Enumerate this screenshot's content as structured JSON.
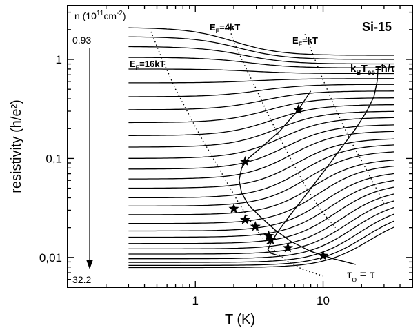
{
  "chart_data": {
    "type": "line",
    "title": "",
    "sample_label": "Si-15",
    "xlabel": "T (K)",
    "ylabel": "resistivity (h/e²)",
    "xscale": "log",
    "yscale": "log",
    "xlim": [
      0.1,
      50
    ],
    "ylim": [
      0.005,
      3.5
    ],
    "x_ticks": [
      {
        "value": 1,
        "label": "1"
      },
      {
        "value": 10,
        "label": "10"
      }
    ],
    "y_ticks": [
      {
        "value": 0.01,
        "label": "0,01"
      },
      {
        "value": 0.1,
        "label": "0,1"
      },
      {
        "value": 1,
        "label": "1"
      }
    ],
    "density_axis": {
      "label_prefix": "n (10",
      "label_exp": "11",
      "label_unit": "cm",
      "label_unit_exp": "-2",
      "label_suffix": ")",
      "top": "0.93",
      "bottom": "32.2"
    },
    "series": [
      {
        "rho_low": 2.1,
        "rho_high": 1.1,
        "T_mid": 2.0
      },
      {
        "rho_low": 1.7,
        "rho_high": 1.0,
        "T_mid": 2.2
      },
      {
        "rho_low": 1.35,
        "rho_high": 0.9,
        "T_mid": 2.4
      },
      {
        "rho_low": 1.05,
        "rho_high": 0.82,
        "T_mid": 2.6
      },
      {
        "rho_low": 0.8,
        "rho_high": 0.72,
        "T_mid": 2.8
      },
      {
        "rho_low": 0.58,
        "rho_high": 0.64,
        "T_mid": 3.0
      },
      {
        "rho_low": 0.42,
        "rho_high": 0.56,
        "T_mid": 3.2
      },
      {
        "rho_low": 0.31,
        "rho_high": 0.48,
        "T_mid": 3.4
      },
      {
        "rho_low": 0.23,
        "rho_high": 0.41,
        "T_mid": 3.7
      },
      {
        "rho_low": 0.17,
        "rho_high": 0.35,
        "T_mid": 4.0
      },
      {
        "rho_low": 0.13,
        "rho_high": 0.3,
        "T_mid": 4.3
      },
      {
        "rho_low": 0.1,
        "rho_high": 0.26,
        "T_mid": 4.7
      },
      {
        "rho_low": 0.078,
        "rho_high": 0.22,
        "T_mid": 5.1
      },
      {
        "rho_low": 0.062,
        "rho_high": 0.19,
        "T_mid": 5.6
      },
      {
        "rho_low": 0.05,
        "rho_high": 0.16,
        "T_mid": 6.2
      },
      {
        "rho_low": 0.04,
        "rho_high": 0.14,
        "T_mid": 6.8
      },
      {
        "rho_low": 0.033,
        "rho_high": 0.12,
        "T_mid": 7.5
      },
      {
        "rho_low": 0.027,
        "rho_high": 0.1,
        "T_mid": 8.3
      },
      {
        "rho_low": 0.022,
        "rho_high": 0.088,
        "T_mid": 9.2
      },
      {
        "rho_low": 0.0185,
        "rho_high": 0.075,
        "T_mid": 10.2
      },
      {
        "rho_low": 0.016,
        "rho_high": 0.065,
        "T_mid": 11.3
      },
      {
        "rho_low": 0.0138,
        "rho_high": 0.057,
        "T_mid": 12.5
      },
      {
        "rho_low": 0.0122,
        "rho_high": 0.05,
        "T_mid": 14.0
      },
      {
        "rho_low": 0.0108,
        "rho_high": 0.044,
        "T_mid": 15.5
      },
      {
        "rho_low": 0.0097,
        "rho_high": 0.039,
        "T_mid": 17.0
      },
      {
        "rho_low": 0.0089,
        "rho_high": 0.035,
        "T_mid": 19.0
      },
      {
        "rho_low": 0.0083,
        "rho_high": 0.031,
        "T_mid": 21.0
      },
      {
        "rho_low": 0.0079,
        "rho_high": 0.028,
        "T_mid": 23.0
      }
    ],
    "dotted_lines": [
      {
        "label": "E_F=16kT",
        "points": [
          [
            0.45,
            1.9
          ],
          [
            0.55,
            1.0
          ],
          [
            0.7,
            0.5
          ],
          [
            0.9,
            0.27
          ],
          [
            1.15,
            0.15
          ],
          [
            1.45,
            0.09
          ],
          [
            1.8,
            0.055
          ],
          [
            2.2,
            0.035
          ],
          [
            2.6,
            0.025
          ],
          [
            3.1,
            0.018
          ],
          [
            3.8,
            0.013
          ],
          [
            5.0,
            0.0095
          ],
          [
            7.0,
            0.0075
          ],
          [
            10.0,
            0.0065
          ]
        ]
      },
      {
        "label": "E_F=4kT",
        "points": [
          [
            1.8,
            2.3
          ],
          [
            2.0,
            1.5
          ],
          [
            2.4,
            0.9
          ],
          [
            3.0,
            0.5
          ],
          [
            3.7,
            0.28
          ],
          [
            4.6,
            0.16
          ],
          [
            5.8,
            0.09
          ],
          [
            7.4,
            0.05
          ],
          [
            9.6,
            0.03
          ],
          [
            12.5,
            0.02
          ]
        ]
      },
      {
        "label": "E_F=kT",
        "points": [
          [
            7.2,
            1.8
          ],
          [
            8.5,
            1.05
          ],
          [
            10.0,
            0.62
          ],
          [
            12.0,
            0.36
          ],
          [
            14.5,
            0.21
          ],
          [
            17.5,
            0.13
          ],
          [
            21.5,
            0.08
          ],
          [
            26.0,
            0.05
          ],
          [
            30.0,
            0.035
          ]
        ]
      }
    ],
    "solid_lines": [
      {
        "label": "k_BT_ee=ħ/τ",
        "points": [
          [
            27,
            0.85
          ],
          [
            26.5,
            0.6
          ],
          [
            25,
            0.42
          ],
          [
            22,
            0.3
          ],
          [
            18,
            0.2
          ],
          [
            14,
            0.13
          ],
          [
            11,
            0.085
          ],
          [
            8.5,
            0.055
          ],
          [
            6.6,
            0.036
          ],
          [
            5.3,
            0.025
          ],
          [
            4.4,
            0.018
          ],
          [
            3.9,
            0.014
          ],
          [
            3.7,
            0.012
          ],
          [
            3.9,
            0.011
          ],
          [
            4.4,
            0.0105
          ]
        ]
      },
      {
        "label": "τ_φ = τ",
        "points": [
          [
            8.0,
            0.48
          ],
          [
            6.4,
            0.31
          ],
          [
            4.6,
            0.19
          ],
          [
            3.3,
            0.13
          ],
          [
            2.6,
            0.1
          ],
          [
            2.3,
            0.08
          ],
          [
            2.2,
            0.06
          ],
          [
            2.3,
            0.045
          ],
          [
            2.6,
            0.034
          ],
          [
            3.2,
            0.026
          ],
          [
            4.2,
            0.019
          ],
          [
            5.6,
            0.0145
          ],
          [
            8.0,
            0.0115
          ],
          [
            12.0,
            0.0097
          ],
          [
            18.0,
            0.0085
          ]
        ]
      }
    ],
    "stars": [
      {
        "T": 6.4,
        "rho": 0.31
      },
      {
        "T": 2.45,
        "rho": 0.093
      },
      {
        "T": 2.0,
        "rho": 0.031
      },
      {
        "T": 2.45,
        "rho": 0.024
      },
      {
        "T": 2.95,
        "rho": 0.0205
      },
      {
        "T": 3.75,
        "rho": 0.0165
      },
      {
        "T": 3.9,
        "rho": 0.015
      },
      {
        "T": 5.3,
        "rho": 0.0125
      },
      {
        "T": 10.0,
        "rho": 0.0104
      }
    ],
    "annotations": [
      {
        "id": "ef16",
        "text": "E",
        "sub": "F",
        "rest": "=16kT"
      },
      {
        "id": "ef4",
        "text": "E",
        "sub": "F",
        "rest": "=4kT"
      },
      {
        "id": "ef1",
        "text": "E",
        "sub": "F",
        "rest": "=kT"
      },
      {
        "id": "kbtee",
        "text": "k",
        "sub": "B",
        "mid": "T",
        "sub2": "ee",
        "rest": "=ħ/τ"
      },
      {
        "id": "tauphi",
        "text": "τ",
        "sub": "φ",
        "rest": " = τ"
      }
    ]
  }
}
